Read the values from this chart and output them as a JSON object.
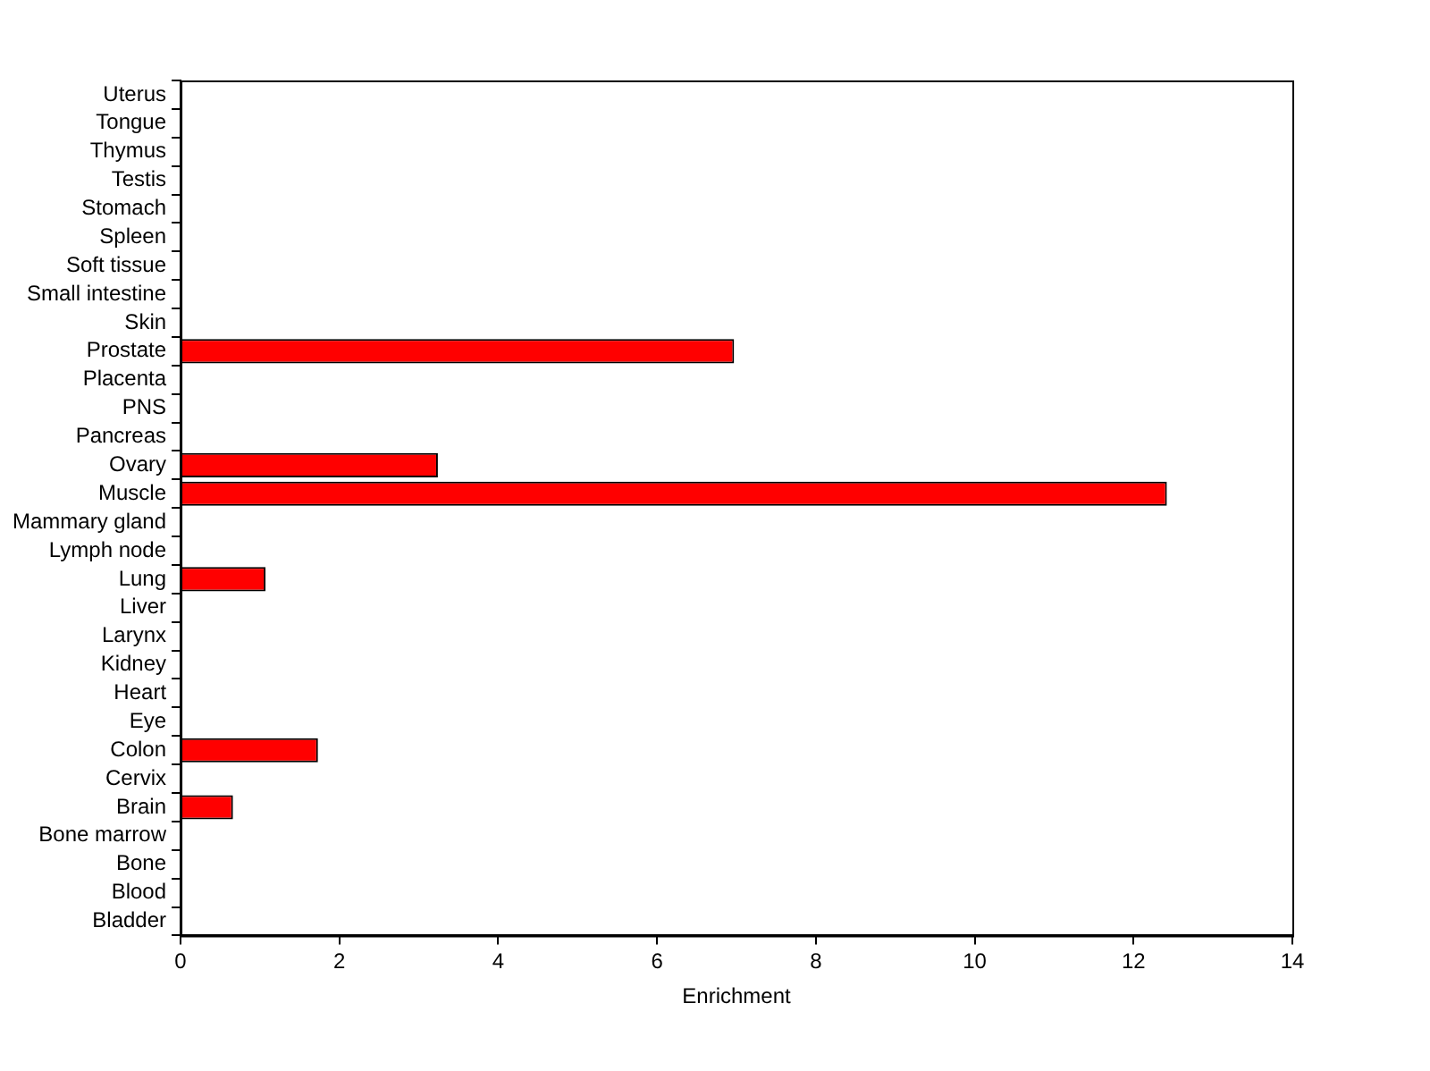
{
  "chart_data": {
    "type": "bar",
    "orientation": "horizontal",
    "xlabel": "Enrichment",
    "categories": [
      "Uterus",
      "Tongue",
      "Thymus",
      "Testis",
      "Stomach",
      "Spleen",
      "Soft tissue",
      "Small intestine",
      "Skin",
      "Prostate",
      "Placenta",
      "PNS",
      "Pancreas",
      "Ovary",
      "Muscle",
      "Mammary gland",
      "Lymph node",
      "Lung",
      "Liver",
      "Larynx",
      "Kidney",
      "Heart",
      "Eye",
      "Colon",
      "Cervix",
      "Brain",
      "Bone marrow",
      "Bone",
      "Blood",
      "Bladder"
    ],
    "values": [
      0,
      0,
      0,
      0,
      0,
      0,
      0,
      0,
      0,
      6.97,
      0,
      0,
      0,
      3.24,
      12.42,
      0,
      0,
      1.07,
      0,
      0,
      0,
      0,
      0,
      1.73,
      0,
      0.66,
      0,
      0,
      0,
      0
    ],
    "color": "#ff0000",
    "xlim": [
      0,
      14
    ],
    "xticks": [
      0,
      2,
      4,
      6,
      8,
      10,
      12,
      14
    ],
    "grid": false,
    "legend": false
  }
}
